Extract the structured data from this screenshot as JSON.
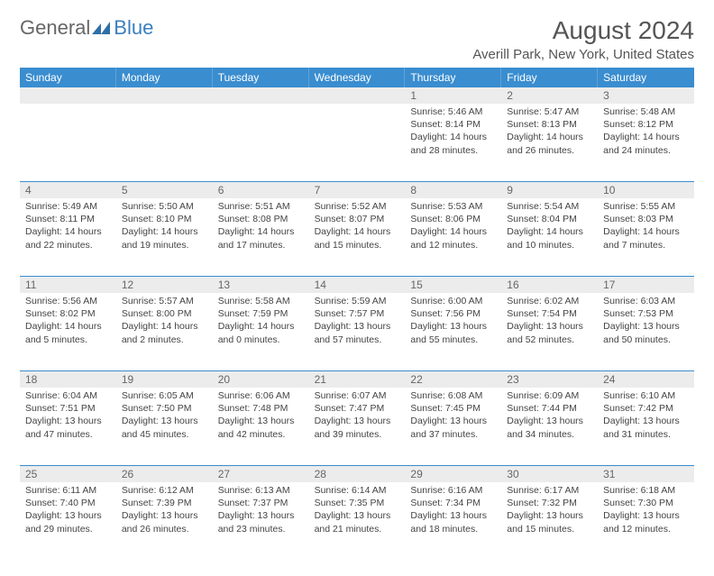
{
  "brand": {
    "part1": "General",
    "part2": "Blue",
    "mark_fill": "#2f6fa8"
  },
  "header": {
    "title": "August 2024",
    "location": "Averill Park, New York, United States"
  },
  "colors": {
    "header_bg": "#3a8dcf",
    "week_divider": "#3a8dcf",
    "daynum_bg": "#ececec"
  },
  "day_labels": [
    "Sunday",
    "Monday",
    "Tuesday",
    "Wednesday",
    "Thursday",
    "Friday",
    "Saturday"
  ],
  "weeks": [
    [
      {
        "n": "",
        "sunrise": "",
        "sunset": "",
        "daylight1": "",
        "daylight2": ""
      },
      {
        "n": "",
        "sunrise": "",
        "sunset": "",
        "daylight1": "",
        "daylight2": ""
      },
      {
        "n": "",
        "sunrise": "",
        "sunset": "",
        "daylight1": "",
        "daylight2": ""
      },
      {
        "n": "",
        "sunrise": "",
        "sunset": "",
        "daylight1": "",
        "daylight2": ""
      },
      {
        "n": "1",
        "sunrise": "Sunrise: 5:46 AM",
        "sunset": "Sunset: 8:14 PM",
        "daylight1": "Daylight: 14 hours",
        "daylight2": "and 28 minutes."
      },
      {
        "n": "2",
        "sunrise": "Sunrise: 5:47 AM",
        "sunset": "Sunset: 8:13 PM",
        "daylight1": "Daylight: 14 hours",
        "daylight2": "and 26 minutes."
      },
      {
        "n": "3",
        "sunrise": "Sunrise: 5:48 AM",
        "sunset": "Sunset: 8:12 PM",
        "daylight1": "Daylight: 14 hours",
        "daylight2": "and 24 minutes."
      }
    ],
    [
      {
        "n": "4",
        "sunrise": "Sunrise: 5:49 AM",
        "sunset": "Sunset: 8:11 PM",
        "daylight1": "Daylight: 14 hours",
        "daylight2": "and 22 minutes."
      },
      {
        "n": "5",
        "sunrise": "Sunrise: 5:50 AM",
        "sunset": "Sunset: 8:10 PM",
        "daylight1": "Daylight: 14 hours",
        "daylight2": "and 19 minutes."
      },
      {
        "n": "6",
        "sunrise": "Sunrise: 5:51 AM",
        "sunset": "Sunset: 8:08 PM",
        "daylight1": "Daylight: 14 hours",
        "daylight2": "and 17 minutes."
      },
      {
        "n": "7",
        "sunrise": "Sunrise: 5:52 AM",
        "sunset": "Sunset: 8:07 PM",
        "daylight1": "Daylight: 14 hours",
        "daylight2": "and 15 minutes."
      },
      {
        "n": "8",
        "sunrise": "Sunrise: 5:53 AM",
        "sunset": "Sunset: 8:06 PM",
        "daylight1": "Daylight: 14 hours",
        "daylight2": "and 12 minutes."
      },
      {
        "n": "9",
        "sunrise": "Sunrise: 5:54 AM",
        "sunset": "Sunset: 8:04 PM",
        "daylight1": "Daylight: 14 hours",
        "daylight2": "and 10 minutes."
      },
      {
        "n": "10",
        "sunrise": "Sunrise: 5:55 AM",
        "sunset": "Sunset: 8:03 PM",
        "daylight1": "Daylight: 14 hours",
        "daylight2": "and 7 minutes."
      }
    ],
    [
      {
        "n": "11",
        "sunrise": "Sunrise: 5:56 AM",
        "sunset": "Sunset: 8:02 PM",
        "daylight1": "Daylight: 14 hours",
        "daylight2": "and 5 minutes."
      },
      {
        "n": "12",
        "sunrise": "Sunrise: 5:57 AM",
        "sunset": "Sunset: 8:00 PM",
        "daylight1": "Daylight: 14 hours",
        "daylight2": "and 2 minutes."
      },
      {
        "n": "13",
        "sunrise": "Sunrise: 5:58 AM",
        "sunset": "Sunset: 7:59 PM",
        "daylight1": "Daylight: 14 hours",
        "daylight2": "and 0 minutes."
      },
      {
        "n": "14",
        "sunrise": "Sunrise: 5:59 AM",
        "sunset": "Sunset: 7:57 PM",
        "daylight1": "Daylight: 13 hours",
        "daylight2": "and 57 minutes."
      },
      {
        "n": "15",
        "sunrise": "Sunrise: 6:00 AM",
        "sunset": "Sunset: 7:56 PM",
        "daylight1": "Daylight: 13 hours",
        "daylight2": "and 55 minutes."
      },
      {
        "n": "16",
        "sunrise": "Sunrise: 6:02 AM",
        "sunset": "Sunset: 7:54 PM",
        "daylight1": "Daylight: 13 hours",
        "daylight2": "and 52 minutes."
      },
      {
        "n": "17",
        "sunrise": "Sunrise: 6:03 AM",
        "sunset": "Sunset: 7:53 PM",
        "daylight1": "Daylight: 13 hours",
        "daylight2": "and 50 minutes."
      }
    ],
    [
      {
        "n": "18",
        "sunrise": "Sunrise: 6:04 AM",
        "sunset": "Sunset: 7:51 PM",
        "daylight1": "Daylight: 13 hours",
        "daylight2": "and 47 minutes."
      },
      {
        "n": "19",
        "sunrise": "Sunrise: 6:05 AM",
        "sunset": "Sunset: 7:50 PM",
        "daylight1": "Daylight: 13 hours",
        "daylight2": "and 45 minutes."
      },
      {
        "n": "20",
        "sunrise": "Sunrise: 6:06 AM",
        "sunset": "Sunset: 7:48 PM",
        "daylight1": "Daylight: 13 hours",
        "daylight2": "and 42 minutes."
      },
      {
        "n": "21",
        "sunrise": "Sunrise: 6:07 AM",
        "sunset": "Sunset: 7:47 PM",
        "daylight1": "Daylight: 13 hours",
        "daylight2": "and 39 minutes."
      },
      {
        "n": "22",
        "sunrise": "Sunrise: 6:08 AM",
        "sunset": "Sunset: 7:45 PM",
        "daylight1": "Daylight: 13 hours",
        "daylight2": "and 37 minutes."
      },
      {
        "n": "23",
        "sunrise": "Sunrise: 6:09 AM",
        "sunset": "Sunset: 7:44 PM",
        "daylight1": "Daylight: 13 hours",
        "daylight2": "and 34 minutes."
      },
      {
        "n": "24",
        "sunrise": "Sunrise: 6:10 AM",
        "sunset": "Sunset: 7:42 PM",
        "daylight1": "Daylight: 13 hours",
        "daylight2": "and 31 minutes."
      }
    ],
    [
      {
        "n": "25",
        "sunrise": "Sunrise: 6:11 AM",
        "sunset": "Sunset: 7:40 PM",
        "daylight1": "Daylight: 13 hours",
        "daylight2": "and 29 minutes."
      },
      {
        "n": "26",
        "sunrise": "Sunrise: 6:12 AM",
        "sunset": "Sunset: 7:39 PM",
        "daylight1": "Daylight: 13 hours",
        "daylight2": "and 26 minutes."
      },
      {
        "n": "27",
        "sunrise": "Sunrise: 6:13 AM",
        "sunset": "Sunset: 7:37 PM",
        "daylight1": "Daylight: 13 hours",
        "daylight2": "and 23 minutes."
      },
      {
        "n": "28",
        "sunrise": "Sunrise: 6:14 AM",
        "sunset": "Sunset: 7:35 PM",
        "daylight1": "Daylight: 13 hours",
        "daylight2": "and 21 minutes."
      },
      {
        "n": "29",
        "sunrise": "Sunrise: 6:16 AM",
        "sunset": "Sunset: 7:34 PM",
        "daylight1": "Daylight: 13 hours",
        "daylight2": "and 18 minutes."
      },
      {
        "n": "30",
        "sunrise": "Sunrise: 6:17 AM",
        "sunset": "Sunset: 7:32 PM",
        "daylight1": "Daylight: 13 hours",
        "daylight2": "and 15 minutes."
      },
      {
        "n": "31",
        "sunrise": "Sunrise: 6:18 AM",
        "sunset": "Sunset: 7:30 PM",
        "daylight1": "Daylight: 13 hours",
        "daylight2": "and 12 minutes."
      }
    ]
  ]
}
